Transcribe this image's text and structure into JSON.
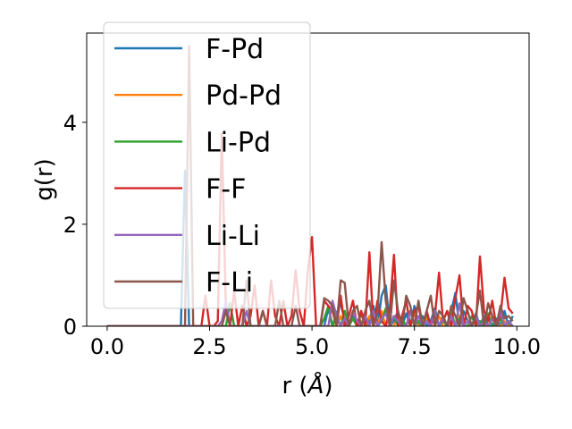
{
  "chart_data": {
    "type": "line",
    "title": "",
    "xlabel": "r ($\\AA$)",
    "xlabel_main": "r (",
    "xlabel_unit": "Å",
    "xlabel_close": ")",
    "ylabel": "g(r)",
    "xlim": [
      -0.5,
      10.3
    ],
    "ylim": [
      0,
      5.75
    ],
    "xticks": [
      0.0,
      2.5,
      5.0,
      7.5,
      10.0
    ],
    "xtick_labels": [
      "0.0",
      "2.5",
      "5.0",
      "7.5",
      "10.0"
    ],
    "yticks": [
      0,
      2,
      4
    ],
    "ytick_labels": [
      "0",
      "2",
      "4"
    ],
    "grid": false,
    "legend": "upper-left",
    "x": [
      0.0,
      0.1,
      0.2,
      0.3,
      0.4,
      0.5,
      0.6,
      0.7,
      0.8,
      0.9,
      1.0,
      1.1,
      1.2,
      1.3,
      1.4,
      1.5,
      1.6,
      1.7,
      1.8,
      1.9,
      2.0,
      2.1,
      2.2,
      2.3,
      2.4,
      2.5,
      2.6,
      2.7,
      2.8,
      2.9,
      3.0,
      3.1,
      3.2,
      3.3,
      3.4,
      3.5,
      3.6,
      3.7,
      3.8,
      3.9,
      4.0,
      4.1,
      4.2,
      4.3,
      4.4,
      4.5,
      4.6,
      4.7,
      4.8,
      4.9,
      5.0,
      5.1,
      5.2,
      5.3,
      5.4,
      5.5,
      5.6,
      5.7,
      5.8,
      5.9,
      6.0,
      6.1,
      6.2,
      6.3,
      6.4,
      6.5,
      6.6,
      6.7,
      6.8,
      6.9,
      7.0,
      7.1,
      7.2,
      7.3,
      7.4,
      7.5,
      7.6,
      7.7,
      7.8,
      7.9,
      8.0,
      8.1,
      8.2,
      8.3,
      8.4,
      8.5,
      8.6,
      8.7,
      8.8,
      8.9,
      9.0,
      9.1,
      9.2,
      9.3,
      9.4,
      9.5,
      9.6,
      9.7,
      9.8,
      9.9
    ],
    "series": [
      {
        "name": "F-Pd",
        "color": "#1f77b4",
        "values": [
          0,
          0,
          0,
          0,
          0,
          0,
          0,
          0,
          0,
          0,
          0,
          0,
          0,
          0,
          0,
          0,
          0,
          0,
          0,
          3.05,
          0,
          0,
          0,
          0,
          0,
          0,
          0,
          0,
          0,
          0,
          0,
          0,
          0,
          0,
          0,
          0,
          0,
          0,
          0,
          0,
          0,
          0,
          0,
          0,
          0,
          0,
          0,
          0,
          0,
          0,
          0,
          0,
          0,
          0,
          0.35,
          0,
          0.25,
          0.45,
          0.1,
          0,
          0.2,
          0,
          0.3,
          0,
          0.1,
          0.4,
          0,
          0.6,
          0.8,
          0,
          0.1,
          0.3,
          0,
          0.25,
          0,
          0.4,
          0,
          0.2,
          0,
          0.1,
          0.35,
          0,
          0.2,
          0,
          0.3,
          0.65,
          0,
          0.3,
          0.1,
          0,
          0.25,
          0,
          0.2,
          0,
          0,
          0.15,
          0,
          0.3,
          0,
          0.2
        ]
      },
      {
        "name": "Pd-Pd",
        "color": "#ff7f0e",
        "values": [
          0,
          0,
          0,
          0,
          0,
          0,
          0,
          0,
          0,
          0,
          0,
          0,
          0,
          0,
          0,
          0,
          0,
          0,
          0,
          0,
          0,
          0,
          0,
          0,
          0,
          0,
          0,
          0,
          0,
          0,
          0,
          0,
          0,
          0,
          0,
          0,
          0,
          0,
          0,
          0,
          0,
          0,
          0,
          0,
          0,
          0,
          0,
          0,
          0,
          0,
          0,
          0,
          0,
          0,
          0,
          0,
          0,
          0.2,
          0,
          0,
          0.15,
          0,
          0,
          0,
          0.2,
          0,
          0,
          0.3,
          0,
          0,
          0,
          0.2,
          0,
          0,
          0,
          0.25,
          0,
          0,
          0.15,
          0,
          0,
          0.2,
          0,
          0,
          0.1,
          0,
          0.2,
          0,
          0,
          0,
          0.15,
          0,
          0,
          0,
          0.2,
          0,
          0,
          0.1,
          0,
          0
        ]
      },
      {
        "name": "Li-Pd",
        "color": "#2ca02c",
        "values": [
          0,
          0,
          0,
          0,
          0,
          0,
          0,
          0,
          0,
          0,
          0,
          0,
          0,
          0,
          0,
          0,
          0,
          0,
          0,
          0,
          0,
          0,
          0,
          0,
          0,
          0,
          0,
          0,
          0,
          0,
          0.45,
          0,
          0,
          0,
          0,
          0,
          0,
          0,
          0,
          0,
          0,
          0,
          0,
          0,
          0,
          0,
          0,
          0,
          0,
          0,
          0,
          0,
          0,
          0.15,
          0.4,
          0,
          0.2,
          0,
          0.3,
          0,
          0.15,
          0,
          0.25,
          0,
          0,
          0.3,
          0,
          0.1,
          0.35,
          0,
          0.2,
          0,
          0.15,
          0,
          0.3,
          0,
          0.1,
          0,
          0.25,
          0,
          0.2,
          0,
          0.1,
          0,
          0.3,
          0,
          0.15,
          0,
          0,
          0.2,
          0,
          0.1,
          0,
          0.25,
          0,
          0,
          0.15,
          0,
          0.1,
          0
        ]
      },
      {
        "name": "F-F",
        "color": "#d62728",
        "values": [
          0,
          0,
          0,
          0,
          0,
          0,
          0,
          0,
          0,
          0,
          0,
          0,
          0,
          0,
          0,
          0,
          0,
          0,
          0,
          0,
          0,
          0,
          0,
          0,
          0.6,
          0,
          0,
          0.1,
          3.78,
          0.3,
          0,
          0.7,
          0,
          0.4,
          0,
          0.2,
          0.8,
          0,
          0.3,
          0,
          0.9,
          0.2,
          0,
          0.5,
          0,
          0.2,
          1.1,
          0.3,
          0,
          1.1,
          1.75,
          0,
          0,
          0.5,
          0.4,
          0.3,
          0,
          0.6,
          0,
          0.2,
          0.5,
          0,
          0.3,
          0,
          1.45,
          0,
          0.5,
          0.1,
          0,
          0.35,
          1.4,
          0,
          0.2,
          0.5,
          0,
          0.3,
          0.4,
          0,
          0.3,
          0,
          0.2,
          1.05,
          0.1,
          0.3,
          0,
          0.55,
          1.0,
          0,
          0.4,
          0.3,
          0,
          1.37,
          0.3,
          0.1,
          0.5,
          0,
          0.2,
          0.95,
          0.35,
          0.25
        ]
      },
      {
        "name": "Li-Li",
        "color": "#9467bd",
        "values": [
          0,
          0,
          0,
          0,
          0,
          0,
          0,
          0,
          0,
          0,
          0,
          0,
          0,
          0,
          0,
          0,
          0,
          0,
          0,
          0,
          0,
          0,
          0,
          0,
          0,
          0,
          0,
          0,
          0.1,
          0.5,
          0,
          0,
          0,
          0,
          0.3,
          0,
          0,
          0,
          0,
          0,
          0,
          0,
          0,
          0,
          0,
          0,
          0,
          0,
          0,
          0,
          0,
          0,
          0,
          0,
          0,
          0.5,
          0.2,
          0,
          0.15,
          0,
          0.3,
          0.1,
          0,
          0.2,
          0,
          0.3,
          0,
          0.15,
          0.25,
          0,
          0.2,
          0.1,
          0,
          0,
          0.3,
          0,
          0.2,
          0,
          0.1,
          0,
          0.3,
          0,
          0.15,
          0,
          0.2,
          0,
          0.45,
          0,
          0.1,
          0,
          0.2,
          0,
          0.1,
          0,
          0.15,
          0,
          0.3,
          0,
          0.1,
          0
        ]
      },
      {
        "name": "F-Li",
        "color": "#8c564b",
        "values": [
          0,
          0,
          0,
          0,
          0,
          0,
          0,
          0,
          0,
          0,
          0,
          0,
          0,
          0,
          0,
          0,
          0,
          0,
          0,
          0,
          5.5,
          0,
          0,
          0,
          0,
          0,
          0,
          0,
          0,
          0.3,
          0,
          0,
          0,
          0,
          0.9,
          0,
          0,
          0,
          0.3,
          0,
          0,
          0,
          0.5,
          0,
          0,
          0,
          0.4,
          0,
          0,
          0,
          0,
          0,
          0,
          0.55,
          0.5,
          0.4,
          0,
          0.9,
          0.85,
          0,
          0.3,
          0.4,
          0,
          0.3,
          0.5,
          0,
          0.25,
          1.65,
          0.5,
          0,
          0.9,
          0.3,
          0,
          0.6,
          0.4,
          0,
          0.5,
          0,
          0.3,
          0.6,
          0,
          0.3,
          0.2,
          0,
          0.4,
          0.2,
          0,
          0.55,
          0.3,
          0,
          0.2,
          0.7,
          0,
          0.45,
          0.2,
          0,
          0.4,
          0.15,
          0.2,
          0.1
        ]
      }
    ]
  }
}
